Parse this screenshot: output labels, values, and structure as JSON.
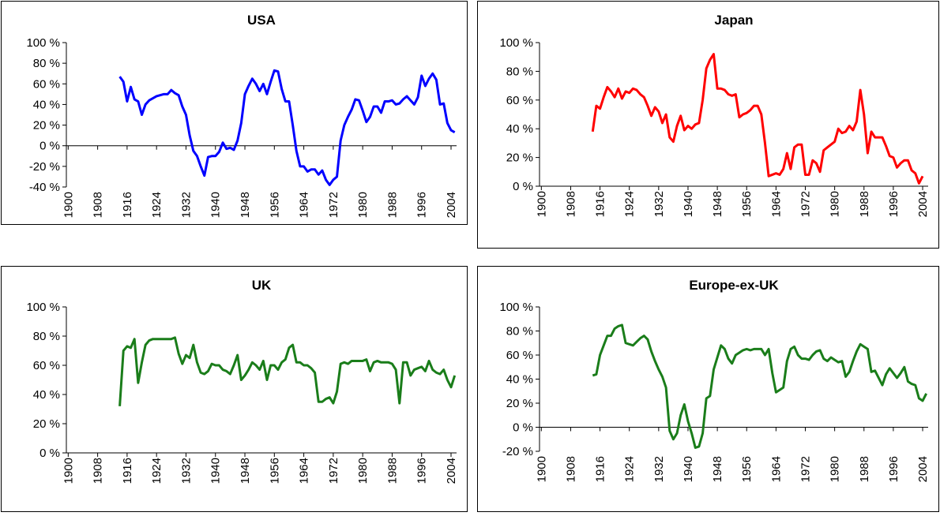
{
  "chart_data": [
    {
      "type": "line",
      "title": "USA",
      "xlim": [
        1899.5,
        2005.5
      ],
      "xticks": [
        1900,
        1908,
        1916,
        1924,
        1932,
        1940,
        1948,
        1956,
        1964,
        1972,
        1980,
        1988,
        1996,
        2004
      ],
      "ylim": [
        -40,
        100
      ],
      "yticks": [
        {
          "value": -40,
          "label": "-40 %"
        },
        {
          "value": -20,
          "label": "-20 %"
        },
        {
          "value": 0,
          "label": "0 %"
        },
        {
          "value": 20,
          "label": "20 %"
        },
        {
          "value": 40,
          "label": "40 %"
        },
        {
          "value": 60,
          "label": "60 %"
        },
        {
          "value": 80,
          "label": "80 %"
        },
        {
          "value": 100,
          "label": "100 %"
        }
      ],
      "series": [
        {
          "color": "#0000ff",
          "x": [
            1914,
            1915,
            1916,
            1917,
            1918,
            1919,
            1920,
            1921,
            1922,
            1924,
            1926,
            1927,
            1928,
            1929,
            1930,
            1931,
            1932,
            1933,
            1934,
            1935,
            1936,
            1937,
            1938,
            1939,
            1940,
            1941,
            1942,
            1943,
            1944,
            1945,
            1946,
            1947,
            1948,
            1949,
            1950,
            1951,
            1952,
            1953,
            1954,
            1955,
            1956,
            1957,
            1958,
            1959,
            1960,
            1961,
            1962,
            1963,
            1964,
            1965,
            1966,
            1967,
            1968,
            1969,
            1970,
            1971,
            1972,
            1973,
            1974,
            1975,
            1976,
            1977,
            1978,
            1979,
            1980,
            1981,
            1982,
            1983,
            1984,
            1985,
            1986,
            1987,
            1988,
            1989,
            1990,
            1991,
            1992,
            1993,
            1994,
            1995,
            1996,
            1997,
            1998,
            1999,
            2000,
            2001,
            2002,
            2003,
            2004,
            2005
          ],
          "values": [
            67,
            62,
            43,
            57,
            45,
            43,
            30,
            40,
            44,
            48,
            50,
            50,
            54,
            51,
            49,
            38,
            30,
            10,
            -5,
            -10,
            -20,
            -29,
            -11,
            -10,
            -10,
            -6,
            3,
            -3,
            -2,
            -4,
            5,
            22,
            50,
            58,
            65,
            60,
            53,
            60,
            50,
            62,
            73,
            72,
            55,
            43,
            43,
            20,
            -5,
            -20,
            -20,
            -25,
            -23,
            -23,
            -28,
            -24,
            -33,
            -38,
            -33,
            -30,
            5,
            20,
            28,
            35,
            45,
            44,
            34,
            23,
            28,
            38,
            38,
            32,
            43,
            43,
            44,
            40,
            41,
            45,
            48,
            44,
            40,
            47,
            68,
            58,
            65,
            70,
            64,
            40,
            41,
            22,
            15,
            13
          ]
        }
      ]
    },
    {
      "type": "line",
      "title": "Japan",
      "xlim": [
        1899.5,
        2005.5
      ],
      "xticks": [
        1900,
        1908,
        1916,
        1924,
        1932,
        1940,
        1948,
        1956,
        1964,
        1972,
        1980,
        1988,
        1996,
        2004
      ],
      "ylim": [
        0,
        100
      ],
      "yticks": [
        {
          "value": 0,
          "label": "0 %"
        },
        {
          "value": 20,
          "label": "20 %"
        },
        {
          "value": 40,
          "label": "40 %"
        },
        {
          "value": 60,
          "label": "60 %"
        },
        {
          "value": 80,
          "label": "80 %"
        },
        {
          "value": 100,
          "label": "100 %"
        }
      ],
      "series": [
        {
          "color": "#ff0000",
          "x": [
            1914,
            1915,
            1916,
            1917,
            1918,
            1919,
            1920,
            1921,
            1922,
            1923,
            1924,
            1925,
            1926,
            1927,
            1928,
            1929,
            1930,
            1931,
            1932,
            1933,
            1934,
            1935,
            1936,
            1937,
            1938,
            1939,
            1940,
            1941,
            1942,
            1943,
            1944,
            1945,
            1946,
            1947,
            1948,
            1949,
            1950,
            1951,
            1952,
            1953,
            1954,
            1955,
            1956,
            1957,
            1958,
            1959,
            1960,
            1961,
            1962,
            1963,
            1964,
            1965,
            1966,
            1967,
            1968,
            1969,
            1970,
            1971,
            1972,
            1973,
            1974,
            1975,
            1976,
            1977,
            1978,
            1979,
            1980,
            1981,
            1982,
            1983,
            1984,
            1985,
            1986,
            1987,
            1988,
            1989,
            1990,
            1991,
            1992,
            1993,
            1994,
            1995,
            1996,
            1997,
            1998,
            1999,
            2000,
            2001,
            2002,
            2003,
            2004
          ],
          "values": [
            38,
            56,
            54,
            62,
            69,
            66,
            62,
            68,
            61,
            66,
            65,
            68,
            67,
            64,
            62,
            56,
            49,
            55,
            52,
            44,
            50,
            34,
            31,
            42,
            49,
            39,
            42,
            40,
            43,
            44,
            60,
            82,
            88,
            92,
            68,
            68,
            67,
            64,
            63,
            64,
            48,
            50,
            51,
            53,
            56,
            56,
            50,
            30,
            7,
            8,
            9,
            8,
            12,
            23,
            12,
            27,
            29,
            29,
            8,
            8,
            18,
            16,
            10,
            25,
            27,
            29,
            31,
            40,
            37,
            38,
            42,
            39,
            45,
            67,
            50,
            23,
            38,
            34,
            34,
            34,
            28,
            21,
            20,
            13,
            16,
            18,
            18,
            11,
            9,
            2,
            7
          ]
        }
      ]
    },
    {
      "type": "line",
      "title": "UK",
      "xlim": [
        1899.5,
        2005.5
      ],
      "xticks": [
        1900,
        1908,
        1916,
        1924,
        1932,
        1940,
        1948,
        1956,
        1964,
        1972,
        1980,
        1988,
        1996,
        2004
      ],
      "ylim": [
        0,
        100
      ],
      "yticks": [
        {
          "value": 0,
          "label": "0 %"
        },
        {
          "value": 20,
          "label": "20 %"
        },
        {
          "value": 40,
          "label": "40 %"
        },
        {
          "value": 60,
          "label": "60 %"
        },
        {
          "value": 80,
          "label": "80 %"
        },
        {
          "value": 100,
          "label": "100 %"
        }
      ],
      "series": [
        {
          "color": "#1a7d1a",
          "x": [
            1914,
            1915,
            1916,
            1917,
            1918,
            1919,
            1920,
            1921,
            1922,
            1923,
            1924,
            1925,
            1926,
            1927,
            1928,
            1929,
            1930,
            1931,
            1932,
            1933,
            1934,
            1935,
            1936,
            1937,
            1938,
            1939,
            1940,
            1941,
            1942,
            1943,
            1944,
            1945,
            1946,
            1947,
            1948,
            1949,
            1950,
            1951,
            1952,
            1953,
            1954,
            1955,
            1956,
            1957,
            1958,
            1959,
            1960,
            1961,
            1962,
            1963,
            1964,
            1965,
            1966,
            1967,
            1968,
            1969,
            1970,
            1971,
            1972,
            1973,
            1974,
            1975,
            1976,
            1977,
            1978,
            1979,
            1980,
            1981,
            1982,
            1983,
            1984,
            1985,
            1986,
            1987,
            1988,
            1989,
            1990,
            1991,
            1992,
            1993,
            1994,
            1995,
            1996,
            1997,
            1998,
            1999,
            2000,
            2001,
            2002,
            2003,
            2004,
            2005
          ],
          "values": [
            32,
            70,
            73,
            72,
            78,
            48,
            62,
            74,
            77,
            78,
            78,
            78,
            78,
            78,
            78,
            79,
            68,
            61,
            67,
            65,
            74,
            62,
            55,
            54,
            56,
            61,
            60,
            60,
            57,
            56,
            54,
            60,
            67,
            50,
            53,
            57,
            62,
            60,
            57,
            63,
            50,
            60,
            60,
            57,
            62,
            64,
            72,
            74,
            62,
            62,
            60,
            60,
            58,
            55,
            35,
            35,
            37,
            38,
            34,
            42,
            61,
            62,
            61,
            63,
            63,
            63,
            63,
            64,
            56,
            62,
            63,
            62,
            62,
            62,
            61,
            57,
            34,
            62,
            62,
            53,
            57,
            58,
            59,
            56,
            63,
            57,
            55,
            54,
            57,
            50,
            45,
            53
          ]
        }
      ]
    },
    {
      "type": "line",
      "title": "Europe-ex-UK",
      "xlim": [
        1899.5,
        2005.5
      ],
      "xticks": [
        1900,
        1908,
        1916,
        1924,
        1932,
        1940,
        1948,
        1956,
        1964,
        1972,
        1980,
        1988,
        1996,
        2004
      ],
      "ylim": [
        -20,
        100
      ],
      "yticks": [
        {
          "value": -20,
          "label": "-20 %"
        },
        {
          "value": 0,
          "label": "0 %"
        },
        {
          "value": 20,
          "label": "20 %"
        },
        {
          "value": 40,
          "label": "40 %"
        },
        {
          "value": 60,
          "label": "60 %"
        },
        {
          "value": 80,
          "label": "80 %"
        },
        {
          "value": 100,
          "label": "100 %"
        }
      ],
      "series": [
        {
          "color": "#1a7d1a",
          "x": [
            1914,
            1915,
            1916,
            1917,
            1918,
            1919,
            1920,
            1921,
            1922,
            1923,
            1924,
            1925,
            1926,
            1927,
            1928,
            1929,
            1930,
            1931,
            1932,
            1933,
            1934,
            1935,
            1936,
            1937,
            1938,
            1939,
            1940,
            1941,
            1942,
            1943,
            1944,
            1945,
            1946,
            1947,
            1948,
            1949,
            1950,
            1951,
            1952,
            1953,
            1954,
            1955,
            1956,
            1957,
            1958,
            1959,
            1960,
            1961,
            1962,
            1963,
            1964,
            1965,
            1966,
            1967,
            1968,
            1969,
            1970,
            1971,
            1972,
            1973,
            1974,
            1975,
            1976,
            1977,
            1978,
            1979,
            1980,
            1981,
            1982,
            1983,
            1984,
            1985,
            1986,
            1987,
            1988,
            1989,
            1990,
            1991,
            1992,
            1993,
            1994,
            1995,
            1996,
            1997,
            1998,
            1999,
            2000,
            2001,
            2002,
            2003,
            2004,
            2005
          ],
          "values": [
            43,
            44,
            60,
            68,
            76,
            76,
            82,
            84,
            85,
            70,
            69,
            68,
            71,
            74,
            76,
            73,
            63,
            55,
            48,
            42,
            33,
            -3,
            -10,
            -5,
            10,
            19,
            5,
            -5,
            -17,
            -16,
            -5,
            24,
            26,
            48,
            58,
            68,
            65,
            57,
            53,
            60,
            62,
            64,
            65,
            64,
            65,
            65,
            65,
            60,
            65,
            45,
            29,
            31,
            33,
            55,
            65,
            67,
            60,
            57,
            57,
            56,
            60,
            63,
            64,
            57,
            55,
            58,
            56,
            54,
            55,
            42,
            46,
            55,
            63,
            69,
            67,
            65,
            46,
            47,
            41,
            35,
            44,
            49,
            45,
            41,
            45,
            50,
            38,
            36,
            35,
            24,
            22,
            28
          ]
        }
      ]
    }
  ]
}
